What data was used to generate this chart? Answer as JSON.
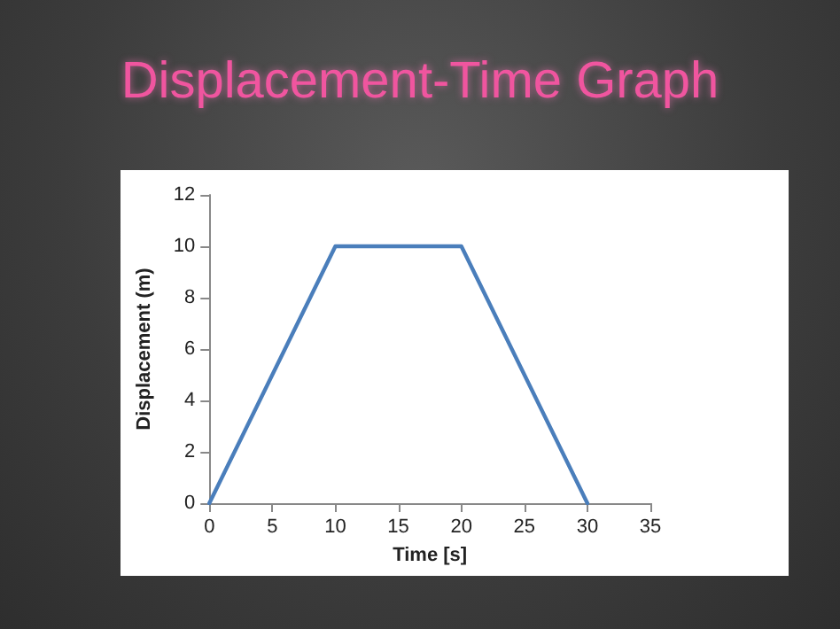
{
  "chart_data": {
    "type": "line",
    "title": "Displacement-Time Graph",
    "xlabel": "Time [s]",
    "ylabel": "Displacement (m)",
    "x": [
      0,
      10,
      20,
      30
    ],
    "series": [
      {
        "color": "#4a7ebb",
        "values": [
          0,
          10,
          10,
          0
        ]
      }
    ],
    "xlim": [
      0,
      35
    ],
    "xticks": [
      0,
      5,
      10,
      15,
      20,
      25,
      30,
      35
    ],
    "ylim": [
      0,
      12
    ],
    "yticks": [
      0,
      2,
      4,
      6,
      8,
      10,
      12
    ],
    "marker": "none",
    "line_style": "solid"
  }
}
